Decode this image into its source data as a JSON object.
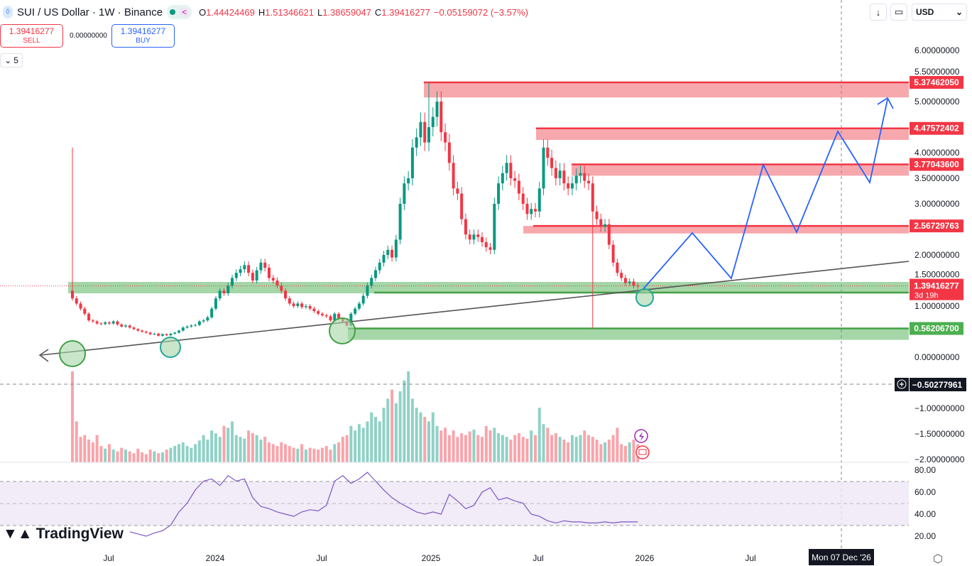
{
  "header": {
    "symbol_title": "SUI / US Dollar · 1W · Binance",
    "ohlc": {
      "o_label": "O",
      "o": "1.44424469",
      "h_label": "H",
      "h": "1.51346621",
      "l_label": "L",
      "l": "1.38659047",
      "c_label": "C",
      "c": "1.39416277",
      "change": "−0.05159072 (−3.57%)"
    }
  },
  "trade": {
    "sell_price": "1.39416277",
    "sell_label": "SELL",
    "spread": "0.00000000",
    "buy_price": "1.39416277",
    "buy_label": "BUY"
  },
  "indicators_toggle": {
    "count": "5"
  },
  "toolbar": {
    "currency": "USD"
  },
  "logo": "TradingView",
  "colors": {
    "up": "#089981",
    "down": "#f23645",
    "resistance_zone": "#f7a8ad",
    "support_zone": "#a5d6a7",
    "projection": "#2962ff",
    "trendline": "#555555",
    "rsi": "#7e57c2"
  },
  "chart_data": {
    "type": "candlestick",
    "symbol": "SUIUSD",
    "interval": "1W",
    "price_axis": {
      "range": [
        -2.0,
        6.5
      ],
      "ticks": [
        "6.00000000",
        "5.50000000",
        "5.00000000",
        "4.00000000",
        "3.50000000",
        "3.00000000",
        "2.00000000",
        "1.50000000",
        "1.00000000",
        "0.00000000",
        "−1.00000000",
        "−1.50000000",
        "−2.00000000"
      ]
    },
    "time_axis": {
      "ticks": [
        "Jul",
        "2024",
        "Jul",
        "2025",
        "Jul",
        "2026",
        "Jul"
      ]
    },
    "crosshair": {
      "price": "−0.50277961",
      "date": "Mon 07 Dec '26"
    },
    "last_price": {
      "value": "1.39416277",
      "countdown": "3d 19h"
    },
    "resistance_levels": [
      "5.37462050",
      "4.47572402",
      "3.77043600",
      "2.56729763"
    ],
    "support_levels": [
      "0.56206700"
    ],
    "closes": [
      1.15,
      1.05,
      0.95,
      0.85,
      0.72,
      0.7,
      0.66,
      0.65,
      0.68,
      0.66,
      0.7,
      0.64,
      0.6,
      0.62,
      0.58,
      0.55,
      0.52,
      0.5,
      0.48,
      0.45,
      0.46,
      0.42,
      0.45,
      0.43,
      0.46,
      0.48,
      0.52,
      0.58,
      0.6,
      0.62,
      0.63,
      0.7,
      0.72,
      0.78,
      0.95,
      1.15,
      1.3,
      1.25,
      1.4,
      1.55,
      1.65,
      1.72,
      1.8,
      1.65,
      1.5,
      1.7,
      1.85,
      1.75,
      1.55,
      1.5,
      1.4,
      1.3,
      1.15,
      1.05,
      1.0,
      1.05,
      0.98,
      1.0,
      0.95,
      0.9,
      0.85,
      0.82,
      0.8,
      0.72,
      0.85,
      0.75,
      0.7,
      0.62,
      0.85,
      0.95,
      1.05,
      1.2,
      1.4,
      1.55,
      1.7,
      1.85,
      2.0,
      2.1,
      1.95,
      2.3,
      3.0,
      3.4,
      3.5,
      4.1,
      4.3,
      4.6,
      4.2,
      4.5,
      4.7,
      5.0,
      4.4,
      4.2,
      3.8,
      3.3,
      3.2,
      2.7,
      2.4,
      2.3,
      2.4,
      2.35,
      2.25,
      2.15,
      2.1,
      3.0,
      3.4,
      3.6,
      3.8,
      3.5,
      3.45,
      3.2,
      3.0,
      2.8,
      2.9,
      2.85,
      3.3,
      4.1,
      3.9,
      3.7,
      3.5,
      3.65,
      3.4,
      3.3,
      3.4,
      3.55,
      3.6,
      3.45,
      3.4,
      2.85,
      2.7,
      2.55,
      2.6,
      2.2,
      1.85,
      1.65,
      1.55,
      1.45,
      1.48,
      1.4,
      1.39
    ],
    "first_open": 1.3,
    "notable_wicks": [
      {
        "week": 0,
        "high": 4.1
      },
      {
        "week": 87,
        "high": 5.37
      },
      {
        "week": 127,
        "low": 0.56
      }
    ],
    "volume": [
      100,
      45,
      28,
      30,
      25,
      22,
      30,
      18,
      15,
      20,
      14,
      12,
      16,
      14,
      12,
      10,
      15,
      11,
      9,
      14,
      12,
      10,
      11,
      14,
      16,
      18,
      20,
      22,
      18,
      16,
      20,
      24,
      30,
      25,
      35,
      32,
      28,
      40,
      38,
      45,
      30,
      28,
      26,
      35,
      32,
      30,
      25,
      28,
      22,
      20,
      18,
      22,
      20,
      18,
      16,
      15,
      20,
      14,
      16,
      15,
      14,
      16,
      18,
      14,
      20,
      22,
      28,
      30,
      40,
      35,
      42,
      38,
      45,
      55,
      50,
      45,
      60,
      70,
      80,
      65,
      78,
      90,
      100,
      70,
      60,
      55,
      50,
      45,
      55,
      40,
      35,
      38,
      30,
      35,
      28,
      32,
      30,
      34,
      36,
      30,
      28,
      40,
      35,
      38,
      32,
      30,
      28,
      25,
      30,
      32,
      28,
      26,
      35,
      30,
      60,
      42,
      38,
      30,
      32,
      28,
      25,
      22,
      30,
      28,
      30,
      35,
      30,
      28,
      25,
      20,
      22,
      25,
      30,
      38,
      20,
      18,
      22,
      25,
      20
    ],
    "rsi": {
      "levels": [
        "80.00",
        "60.00",
        "40.00",
        "20.00"
      ],
      "values": [
        24,
        22,
        20,
        23,
        25,
        30,
        42,
        50,
        62,
        70,
        72,
        66,
        75,
        70,
        72,
        55,
        47,
        45,
        42,
        40,
        38,
        42,
        44,
        43,
        48,
        70,
        75,
        68,
        72,
        78,
        70,
        62,
        55,
        50,
        46,
        42,
        40,
        42,
        40,
        58,
        52,
        45,
        48,
        60,
        64,
        53,
        55,
        52,
        50,
        40,
        38,
        34,
        32,
        34,
        33,
        33,
        32,
        32,
        33,
        32,
        33,
        33,
        33
      ]
    }
  }
}
